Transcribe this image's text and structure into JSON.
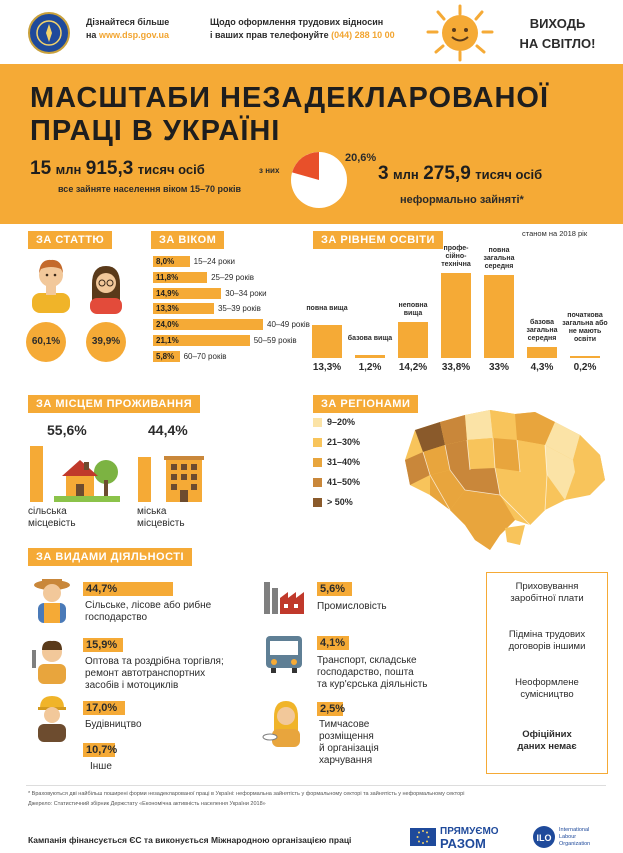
{
  "header": {
    "learn_more": "Дізнайтеся більше",
    "on_site_prefix": "на ",
    "site": "www.dsp.gov.ua",
    "question_line1": "Щодо оформлення трудових відносин",
    "question_line2_prefix": "і ваших прав телефонуйте ",
    "phone": "(044) 288 10 00",
    "slogan_line1": "ВИХОДЬ",
    "slogan_line2": "НА СВІТЛО!"
  },
  "title": {
    "line1": "МАСШТАБИ НЕЗАДЕКЛАРОВАНОЇ",
    "line2": "ПРАЦІ В УКРАЇНІ"
  },
  "summary": {
    "total_millions": "15",
    "total_mln_unit": "млн",
    "total_thousands": "915,3",
    "total_th_unit": "тисяч осіб",
    "total_caption": "все зайняте населення віком 15–70 років",
    "of_them": "з них",
    "pie_percent": "20,6%",
    "pie_fraction": 0.206,
    "informal_millions": "3",
    "informal_mln_unit": "млн",
    "informal_thousands": "275,9",
    "informal_th_unit": "тисяч осіб",
    "informal_caption": "неформально зайняті*"
  },
  "as_of": "станом на 2018 рік",
  "sections": {
    "by_sex": "ЗА СТАТТЮ",
    "by_age": "ЗА ВІКОМ",
    "by_education": "ЗА РІВНЕМ ОСВІТИ",
    "by_residence": "ЗА МІСЦЕМ ПРОЖИВАННЯ",
    "by_region": "ЗА РЕГІОНАМИ",
    "by_activity": "ЗА ВИДАМИ ДІЯЛЬНОСТІ"
  },
  "sex": {
    "male": "60,1%",
    "female": "39,9%"
  },
  "chart_data": [
    {
      "type": "bar",
      "categories": [
        "15–24 роки",
        "25–29 років",
        "30–34 роки",
        "35–39 років",
        "40–49 років",
        "50–59 років",
        "60–70 років"
      ],
      "values": [
        8.0,
        11.8,
        14.9,
        13.3,
        24.0,
        21.1,
        5.8
      ],
      "labels": [
        "8,0%",
        "11,8%",
        "14,9%",
        "13,3%",
        "24,0%",
        "21,1%",
        "5,8%"
      ]
    },
    {
      "type": "bar",
      "categories": [
        "повна вища",
        "базова вища",
        "неповна вища",
        "профе- сійно- технічна",
        "повна загальна середня",
        "базова загальна середня",
        "початкова загальна або не мають освіти"
      ],
      "values": [
        13.3,
        1.2,
        14.2,
        33.8,
        33.0,
        4.3,
        0.2
      ],
      "labels": [
        "13,3%",
        "1,2%",
        "14,2%",
        "33,8%",
        "33%",
        "4,3%",
        "0,2%"
      ]
    }
  ],
  "residence": {
    "rural_value": "55,6%",
    "rural_fraction": 0.556,
    "rural_label_1": "сільська",
    "rural_label_2": "місцевість",
    "urban_value": "44,4%",
    "urban_fraction": 0.444,
    "urban_label_1": "міська",
    "urban_label_2": "місцевість"
  },
  "regions_legend": [
    {
      "label": "9–20%",
      "color": "#fbe3a6"
    },
    {
      "label": "21–30%",
      "color": "#f8c45b"
    },
    {
      "label": "31–40%",
      "color": "#e8a53d"
    },
    {
      "label": "41–50%",
      "color": "#c9873a"
    },
    {
      "label": "> 50%",
      "color": "#8a5a2b"
    }
  ],
  "activities": [
    {
      "value": "44,7%",
      "line1": "Сільське, лісове або рибне",
      "line2": "господарство",
      "line3": "",
      "icon": "farmer-icon"
    },
    {
      "value": "15,9%",
      "line1": "Оптова та роздрібна торгівля;",
      "line2": "ремонт автотранспортних",
      "line3": "засобів і мотоциклів",
      "icon": "mechanic-icon"
    },
    {
      "value": "17,0%",
      "line1": "Будівництво",
      "line2": "",
      "line3": "",
      "icon": "builder-icon"
    },
    {
      "value": "10,7%",
      "line1": "Інше",
      "line2": "",
      "line3": "",
      "icon": ""
    },
    {
      "value": "5,6%",
      "line1": "Промисловість",
      "line2": "",
      "line3": "",
      "icon": "factory-icon"
    },
    {
      "value": "4,1%",
      "line1": "Транспорт, складське",
      "line2": "господарство, пошта",
      "line3": "та кур'єрська діяльність",
      "icon": "bus-icon"
    },
    {
      "value": "2,5%",
      "line1": "Тимчасове",
      "line2": "розміщення",
      "line3": "й організація",
      "line4": "харчування",
      "icon": "waiter-icon"
    }
  ],
  "side_panel": {
    "item1_l1": "Приховування",
    "item1_l2": "заробітної плати",
    "item2_l1": "Підміна трудових",
    "item2_l2": "договорів іншими",
    "item3_l1": "Неоформлене",
    "item3_l2": "сумісництво",
    "item4_l1": "Офіційних",
    "item4_l2": "даних немає"
  },
  "footnotes": {
    "note": "* Враховуються дві найбільш поширені форми незадекларованої праці в Україні: неформальна зайнятість у формальному секторі та зайнятість у неформальному секторі",
    "source": "Джерело: Статистичний збірник Держстату «Економічна активність населення України 2018»"
  },
  "footer": {
    "campaign": "Кампанія фінансується ЄС та виконується Міжнародною організацією праці",
    "pryamuemo": "ПРЯМУЄМО",
    "razom": "РАЗОМ",
    "ilo_l1": "International",
    "ilo_l2": "Labour",
    "ilo_l3": "Organization"
  }
}
